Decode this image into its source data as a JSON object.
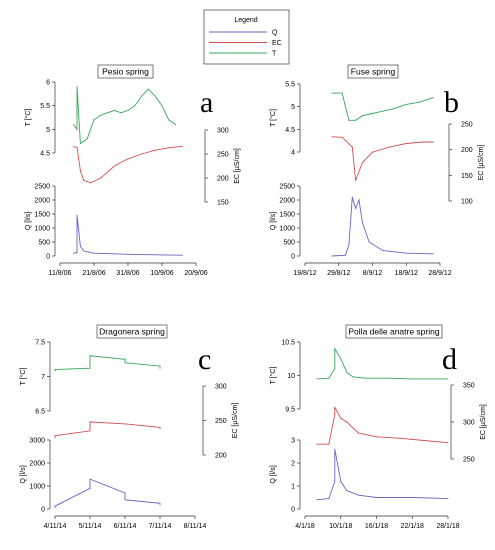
{
  "legend": {
    "title": "Legend",
    "items": [
      {
        "label": "Q",
        "color": "#6a64c2"
      },
      {
        "label": "EC",
        "color": "#d05050"
      },
      {
        "label": "T",
        "color": "#3aa55a"
      }
    ]
  },
  "chart_data": [
    {
      "type": "line",
      "title": "Pesio spring",
      "panel_letter": "a",
      "x_ticks": [
        "11/8/06",
        "21/8/06",
        "31/8/06",
        "10/9/06",
        "20/9/06"
      ],
      "x_range": [
        "11/8/06",
        "20/9/06"
      ],
      "T": {
        "ylabel": "T [°C]",
        "ylim": [
          4.5,
          6
        ],
        "ticks": [
          "6",
          "5.5",
          "5",
          "4.5"
        ],
        "x": [
          "15/8/06",
          "16/8/06",
          "16/8/06",
          "17/8/06",
          "18/8/06",
          "19/8/06",
          "21/8/06",
          "23/8/06",
          "25/8/06",
          "27/8/06",
          "29/8/06",
          "31/8/06",
          "2/9/06",
          "4/9/06",
          "6/9/06",
          "8/9/06",
          "10/9/06",
          "12/9/06",
          "14/9/06"
        ],
        "y": [
          5.1,
          5.0,
          5.9,
          4.7,
          4.75,
          4.8,
          5.2,
          5.3,
          5.35,
          5.4,
          5.35,
          5.4,
          5.5,
          5.7,
          5.85,
          5.7,
          5.5,
          5.2,
          5.1
        ]
      },
      "EC": {
        "ylabel": "EC [µS/cm]",
        "ylim": [
          150,
          300
        ],
        "ticks": [
          "300",
          "250",
          "200",
          "150"
        ],
        "x": [
          "15/8/06",
          "16/8/06",
          "17/8/06",
          "18/8/06",
          "20/8/06",
          "23/8/06",
          "27/8/06",
          "31/8/06",
          "4/9/06",
          "8/9/06",
          "12/9/06",
          "16/9/06"
        ],
        "y": [
          265,
          264,
          215,
          195,
          190,
          200,
          225,
          240,
          250,
          258,
          263,
          266
        ]
      },
      "Q": {
        "ylabel": "Q [l/s]",
        "ylim": [
          0,
          2500
        ],
        "ticks": [
          "2500",
          "2000",
          "1500",
          "1000",
          "500",
          "0"
        ],
        "x": [
          "15/8/06",
          "16/8/06",
          "16/8/06",
          "17/8/06",
          "18/8/06",
          "21/8/06",
          "31/8/06",
          "10/9/06",
          "16/9/06"
        ],
        "y": [
          100,
          120,
          1450,
          350,
          180,
          100,
          60,
          40,
          30
        ]
      }
    },
    {
      "type": "line",
      "title": "Fuse spring",
      "panel_letter": "b",
      "x_ticks": [
        "19/8/12",
        "29/8/12",
        "8/9/12",
        "18/9/12",
        "28/9/12"
      ],
      "x_range": [
        "19/8/12",
        "28/9/12"
      ],
      "T": {
        "ylabel": "T [°C]",
        "ylim": [
          4,
          5.5
        ],
        "ticks": [
          "5.5",
          "5",
          "4.5",
          "4"
        ],
        "x": [
          "27/8/12",
          "30/8/12",
          "1/9/12",
          "3/9/12",
          "5/9/12",
          "8/9/12",
          "11/9/12",
          "14/9/12",
          "18/9/12",
          "22/9/12",
          "26/9/12"
        ],
        "y": [
          5.3,
          5.3,
          4.7,
          4.7,
          4.8,
          4.85,
          4.9,
          4.95,
          5.05,
          5.1,
          5.2
        ]
      },
      "EC": {
        "ylabel": "EC [µS/cm]",
        "ylim": [
          100,
          250
        ],
        "ticks": [
          "250",
          "200",
          "150",
          "100"
        ],
        "x": [
          "27/8/12",
          "30/8/12",
          "2/9/12",
          "3/9/12",
          "5/9/12",
          "8/9/12",
          "13/9/12",
          "18/9/12",
          "23/9/12",
          "26/9/12"
        ],
        "y": [
          225,
          224,
          205,
          140,
          175,
          195,
          205,
          212,
          215,
          215
        ]
      },
      "Q": {
        "ylabel": "Q [l/s]",
        "ylim": [
          0,
          2500
        ],
        "ticks": [
          "2500",
          "2000",
          "1500",
          "1000",
          "500",
          "0"
        ],
        "x": [
          "27/8/12",
          "31/8/12",
          "1/9/12",
          "2/9/12",
          "3/9/12",
          "4/9/12",
          "5/9/12",
          "7/9/12",
          "11/9/12",
          "18/9/12",
          "26/9/12"
        ],
        "y": [
          0,
          30,
          400,
          2100,
          1700,
          2000,
          1200,
          500,
          200,
          100,
          80
        ]
      }
    },
    {
      "type": "line",
      "title": "Dragonera spring",
      "panel_letter": "c",
      "x_ticks": [
        "4/11/14",
        "5/11/14",
        "6/11/14",
        "7/11/14",
        "8/11/14"
      ],
      "x_range": [
        "4/11/14",
        "8/11/14"
      ],
      "T": {
        "ylabel": "T [°C]",
        "ylim": [
          6.5,
          7.5
        ],
        "ticks": [
          "7.5",
          "7",
          "6.5"
        ],
        "x": [
          "4/11/14",
          "4/11/14",
          "5/11/14",
          "5/11/14",
          "6/11/14",
          "6/11/14",
          "7/11/14",
          "7/11/14"
        ],
        "y": [
          7.08,
          7.1,
          7.12,
          7.3,
          7.25,
          7.2,
          7.15,
          7.12
        ]
      },
      "EC": {
        "ylabel": "EC [µS/cm]",
        "ylim": [
          200,
          300
        ],
        "ticks": [
          "300",
          "250",
          "200"
        ],
        "x": [
          "4/11/14",
          "4/11/14",
          "5/11/14",
          "5/11/14",
          "6/11/14",
          "7/11/14",
          "7/11/14"
        ],
        "y": [
          225,
          228,
          235,
          248,
          245,
          240,
          238
        ]
      },
      "Q": {
        "ylabel": "Q [l/s]",
        "ylim": [
          0,
          3000
        ],
        "ticks": [
          "3000",
          "2000",
          "1000",
          "0"
        ],
        "x": [
          "4/11/14",
          "4/11/14",
          "5/11/14",
          "5/11/14",
          "6/11/14",
          "6/11/14",
          "7/11/14",
          "7/11/14"
        ],
        "y": [
          60,
          120,
          900,
          1300,
          700,
          400,
          250,
          180
        ]
      }
    },
    {
      "type": "line",
      "title": "Polla delle anatre spring",
      "panel_letter": "d",
      "x_ticks": [
        "4/1/18",
        "10/1/18",
        "16/1/18",
        "22/1/18",
        "28/1/18"
      ],
      "x_range": [
        "4/1/18",
        "28/1/18"
      ],
      "T": {
        "ylabel": "T [°C]",
        "ylim": [
          9.5,
          10.5
        ],
        "ticks": [
          "10.5",
          "10",
          "9.5"
        ],
        "x": [
          "6/1/18",
          "8/1/18",
          "9/1/18",
          "9/1/18",
          "10/1/18",
          "11/1/18",
          "12/1/18",
          "14/1/18",
          "18/1/18",
          "22/1/18",
          "26/1/18",
          "28/1/18"
        ],
        "y": [
          9.95,
          9.96,
          10.1,
          10.4,
          10.25,
          10.05,
          9.98,
          9.96,
          9.96,
          9.95,
          9.95,
          9.95
        ]
      },
      "EC": {
        "ylabel": "EC [µS/cm]",
        "ylim": [
          250,
          350
        ],
        "ticks": [
          "350",
          "300",
          "250"
        ],
        "x": [
          "6/1/18",
          "8/1/18",
          "9/1/18",
          "9/1/18",
          "10/1/18",
          "11/1/18",
          "13/1/18",
          "16/1/18",
          "20/1/18",
          "24/1/18",
          "28/1/18"
        ],
        "y": [
          270,
          270,
          310,
          320,
          305,
          300,
          285,
          280,
          278,
          275,
          272
        ]
      },
      "Q": {
        "ylabel": "Q [l/s]",
        "ylim": [
          0,
          3
        ],
        "ticks": [
          "3",
          "2",
          "1",
          "0"
        ],
        "x": [
          "6/1/18",
          "8/1/18",
          "9/1/18",
          "9/1/18",
          "10/1/18",
          "11/1/18",
          "13/1/18",
          "16/1/18",
          "22/1/18",
          "28/1/18"
        ],
        "y": [
          0.4,
          0.45,
          1.2,
          2.6,
          1.2,
          0.8,
          0.6,
          0.5,
          0.5,
          0.45
        ]
      }
    }
  ]
}
